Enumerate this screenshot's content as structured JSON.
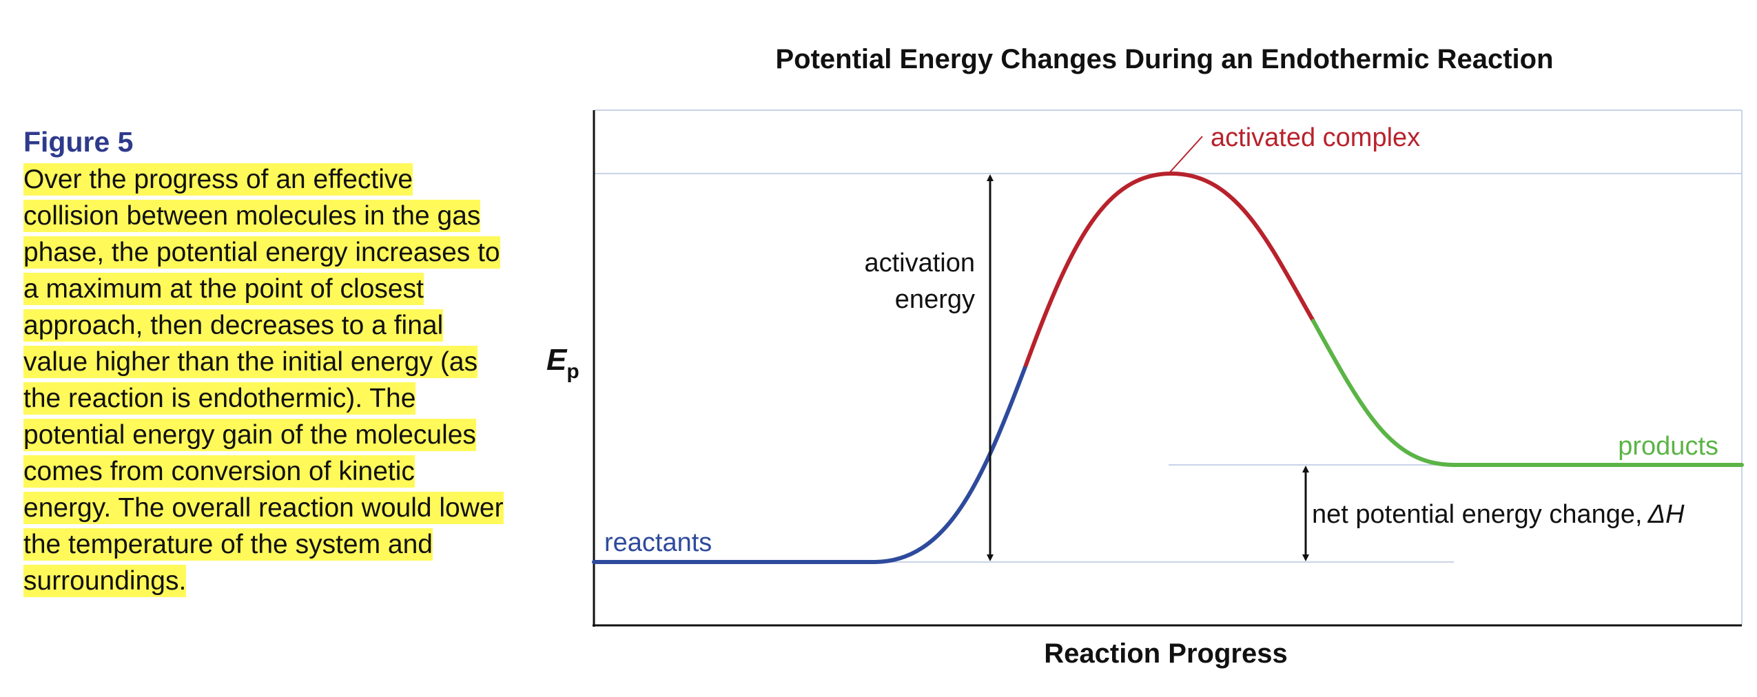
{
  "caption": {
    "figure_label": "Figure 5",
    "text": "Over the progress of an effective collision between molecules in the gas phase, the potential energy increases to a maximum at the point of closest approach, then decreases to a final value higher than the initial energy (as the reaction is endothermic). The potential energy gain of the molecules comes from conversion of kinetic energy. The overall reaction would lower the temperature of the system and surroundings."
  },
  "chart": {
    "title": "Potential Energy Changes During an Endothermic Reaction",
    "xlabel": "Reaction Progress",
    "ylabel_main": "E",
    "ylabel_sub": "p",
    "labels": {
      "reactants": "reactants",
      "products": "products",
      "activated_complex": "activated complex",
      "activation_energy_line1": "activation",
      "activation_energy_line2": "energy",
      "net_change": "net potential energy change,",
      "net_change_symbol": "ΔH"
    },
    "colors": {
      "reactants_curve": "#2e4a9c",
      "activation_curve": "#b8222c",
      "products_curve": "#5bb446",
      "activated_label": "#b8222c",
      "products_label": "#5bb446",
      "reactants_label": "#2e4a9c",
      "axis": "#111111",
      "guide_lines": "#c9d3e6",
      "figure_label": "#2e3a8c",
      "highlight": "#fff95a"
    }
  }
}
